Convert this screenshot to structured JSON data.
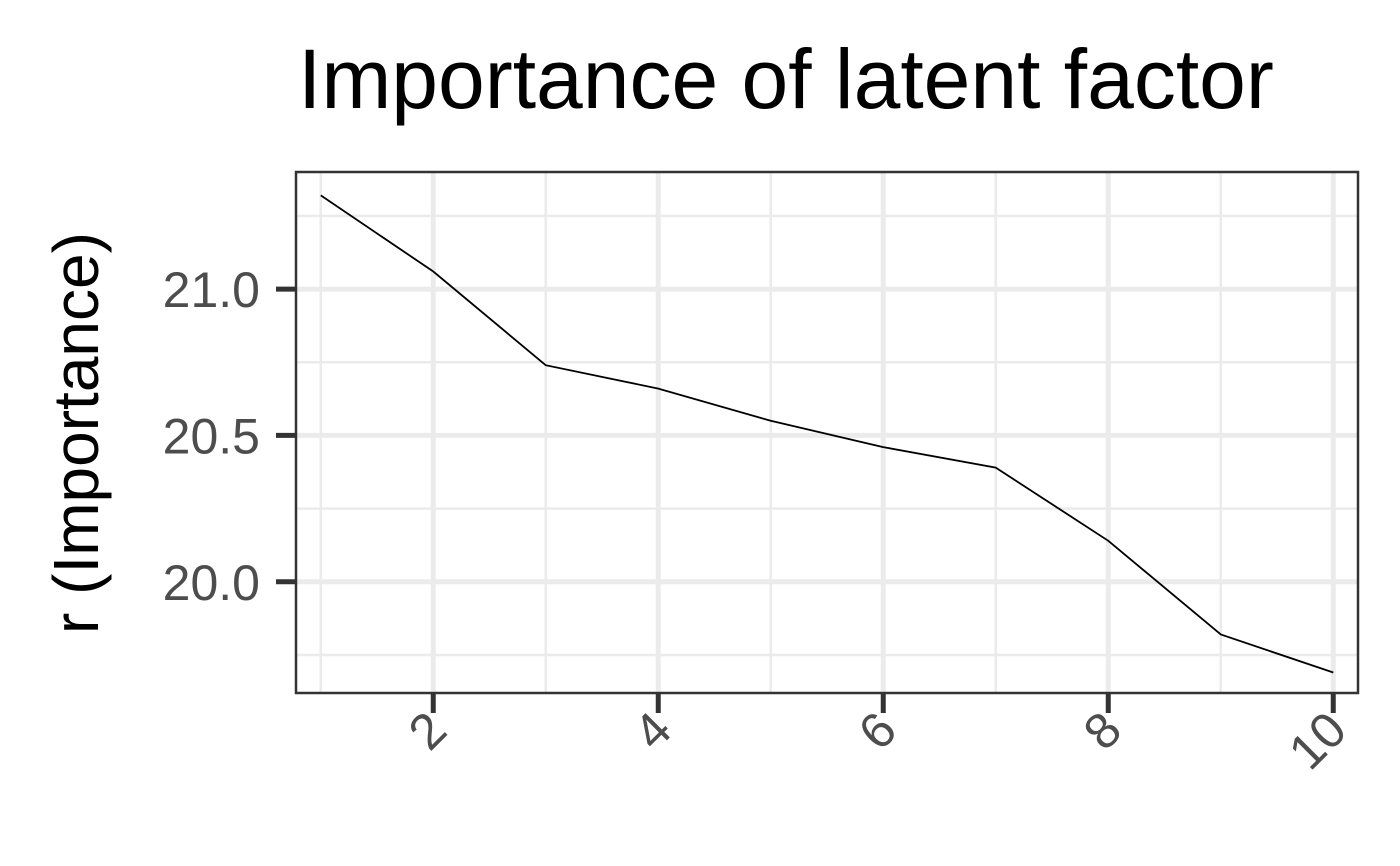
{
  "chart_data": {
    "type": "line",
    "title": "Importance of latent factor",
    "xlabel": "",
    "ylabel": "r (Importance)",
    "x": [
      1,
      2,
      3,
      4,
      5,
      6,
      7,
      8,
      9,
      10
    ],
    "series": [
      {
        "values": [
          21.32,
          21.06,
          20.74,
          20.66,
          20.55,
          20.46,
          20.39,
          20.14,
          19.82,
          19.69
        ]
      }
    ],
    "xlim": [
      0.78,
      10.22
    ],
    "ylim": [
      19.62,
      21.4
    ],
    "x_ticks": [
      2,
      4,
      6,
      8,
      10
    ],
    "x_tick_labels": [
      "2",
      "4",
      "6",
      "8",
      "10"
    ],
    "y_ticks": [
      20.0,
      20.5,
      21.0
    ],
    "y_tick_labels": [
      "20.0",
      "20.5",
      "21.0"
    ],
    "grid": true,
    "theme": "bw",
    "line_color": "#000000"
  }
}
